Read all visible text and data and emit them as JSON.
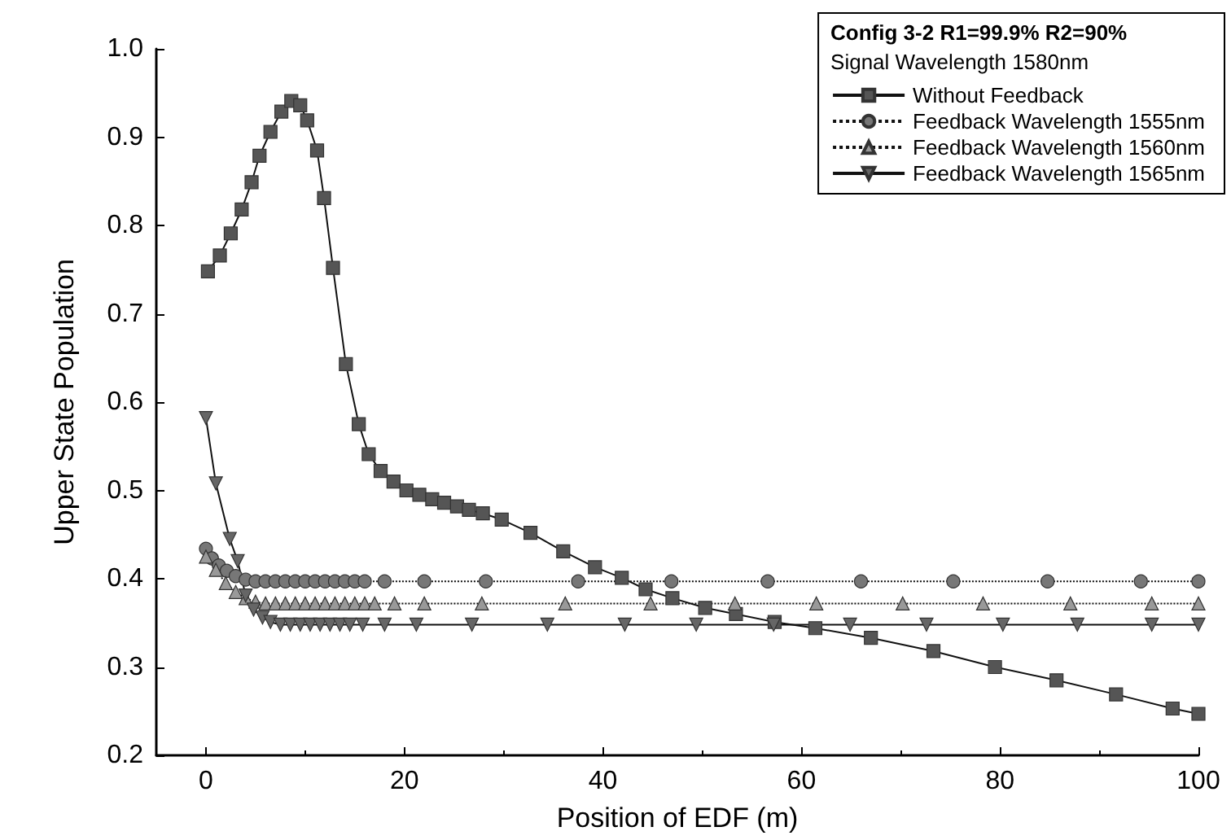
{
  "chart_data": {
    "type": "line",
    "xlabel": "Position of EDF (m)",
    "ylabel": "Upper State Population",
    "legend_title": "Config 3-2 R1=99.9% R2=90%\nSignal Wavelength 1580nm",
    "xlim": [
      -5,
      100
    ],
    "xticks": [
      0,
      20,
      40,
      60,
      80,
      100
    ],
    "ylim": [
      0.2,
      1.0
    ],
    "yticks": [
      0.2,
      0.3,
      0.4,
      0.5,
      0.6,
      0.7,
      0.8,
      0.9,
      {
        "value": 1,
        "label": "1.0"
      }
    ],
    "grid": false,
    "legend": "top right",
    "series": [
      {
        "name": "Without Feedback",
        "color": "#555555",
        "marker": "square",
        "line_style": "solid",
        "x": [
          0.2,
          1.4,
          2.5,
          3.6,
          4.6,
          5.4,
          6.5,
          7.6,
          8.6,
          9.5,
          10.2,
          11.2,
          11.9,
          12.8,
          14.1,
          15.4,
          16.4,
          17.6,
          18.9,
          20.2,
          21.5,
          22.8,
          24,
          25.3,
          26.5,
          27.9,
          29.8,
          32.7,
          36,
          39.2,
          41.9,
          44.3,
          47,
          50.3,
          53.4,
          57.3,
          61.4,
          67,
          73.3,
          79.5,
          85.7,
          91.7,
          97.4,
          100
        ],
        "values": [
          0.748,
          0.766,
          0.791,
          0.818,
          0.849,
          0.879,
          0.906,
          0.929,
          0.941,
          0.936,
          0.919,
          0.885,
          0.831,
          0.752,
          0.643,
          0.575,
          0.541,
          0.522,
          0.51,
          0.5,
          0.495,
          0.49,
          0.486,
          0.482,
          0.478,
          0.474,
          0.467,
          0.452,
          0.431,
          0.413,
          0.401,
          0.388,
          0.378,
          0.367,
          0.36,
          0.351,
          0.344,
          0.333,
          0.318,
          0.3,
          0.285,
          0.269,
          0.253,
          0.247
        ]
      },
      {
        "name": "Feedback Wavelength 1555nm",
        "color": "#777777",
        "marker": "circle",
        "line_style": "dotted",
        "x": [
          0,
          0.6,
          1.3,
          2.1,
          3,
          4,
          5,
          6,
          7,
          8,
          9,
          10,
          11,
          12,
          13,
          14,
          15,
          16,
          18,
          22,
          28.2,
          37.5,
          46.9,
          56.6,
          66,
          75.3,
          84.8,
          94.2,
          100
        ],
        "values": [
          0.434,
          0.423,
          0.415,
          0.409,
          0.403,
          0.399,
          0.397,
          0.397,
          0.397,
          0.397,
          0.397,
          0.397,
          0.397,
          0.397,
          0.397,
          0.397,
          0.397,
          0.397,
          0.397,
          0.397,
          0.397,
          0.397,
          0.397,
          0.397,
          0.397,
          0.397,
          0.397,
          0.397,
          0.397
        ]
      },
      {
        "name": "Feedback Wavelength 1560nm",
        "color": "#999999",
        "marker": "triangle",
        "line_style": "dotted",
        "x": [
          0,
          1,
          2,
          3,
          4,
          5,
          6,
          7,
          8,
          9,
          10,
          11,
          12,
          13,
          14,
          15,
          16,
          17,
          19,
          22,
          27.8,
          36.2,
          44.8,
          53.3,
          61.5,
          70.2,
          78.3,
          87.1,
          95.3,
          100
        ],
        "values": [
          0.425,
          0.41,
          0.395,
          0.385,
          0.378,
          0.374,
          0.372,
          0.372,
          0.372,
          0.372,
          0.372,
          0.372,
          0.372,
          0.372,
          0.372,
          0.372,
          0.372,
          0.372,
          0.372,
          0.372,
          0.372,
          0.372,
          0.372,
          0.372,
          0.372,
          0.372,
          0.372,
          0.372,
          0.372,
          0.372
        ]
      },
      {
        "name": "Feedback Wavelength 1565nm",
        "color": "#666666",
        "marker": "triangle-down",
        "line_style": "solid",
        "x": [
          0,
          1,
          2.4,
          3.2,
          4,
          4.8,
          5.7,
          6.5,
          7.5,
          8.5,
          9.5,
          10.5,
          11.5,
          12.5,
          13.5,
          14.5,
          15.8,
          18,
          21.2,
          26.8,
          34.4,
          42.2,
          49.4,
          57.2,
          64.9,
          72.6,
          80.3,
          87.8,
          95.3,
          100
        ],
        "values": [
          0.582,
          0.508,
          0.445,
          0.42,
          0.381,
          0.365,
          0.356,
          0.351,
          0.348,
          0.348,
          0.348,
          0.348,
          0.348,
          0.348,
          0.348,
          0.348,
          0.348,
          0.348,
          0.348,
          0.348,
          0.348,
          0.348,
          0.348,
          0.348,
          0.348,
          0.348,
          0.348,
          0.348,
          0.348,
          0.348
        ]
      }
    ]
  }
}
